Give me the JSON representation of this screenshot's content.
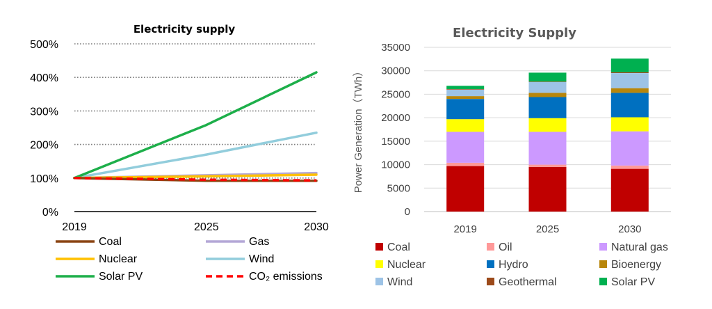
{
  "chart_data": [
    {
      "type": "line",
      "title": "Electricity supply",
      "x": [
        2019,
        2025,
        2030
      ],
      "ylim": [
        0,
        500
      ],
      "yticks": [
        "0%",
        "100%",
        "200%",
        "300%",
        "400%",
        "500%"
      ],
      "xticks": [
        "2019",
        "2025",
        "2030"
      ],
      "grid": "horizontal dotted",
      "legend_position": "bottom",
      "series": [
        {
          "name": "Coal",
          "color": "#8B4513",
          "dash": false,
          "values": [
            100,
            92,
            92
          ]
        },
        {
          "name": "Gas",
          "color": "#B4A7D6",
          "dash": false,
          "values": [
            100,
            108,
            115
          ]
        },
        {
          "name": "Nuclear",
          "color": "#FFC000",
          "dash": false,
          "values": [
            100,
            105,
            110
          ]
        },
        {
          "name": "Wind",
          "color": "#92CDDC",
          "dash": false,
          "values": [
            100,
            170,
            235
          ]
        },
        {
          "name": "Solar PV",
          "color": "#1DAF4A",
          "dash": false,
          "values": [
            100,
            258,
            415
          ]
        },
        {
          "name": "CO₂ emissions",
          "color": "#FF0000",
          "dash": true,
          "values": [
            100,
            95,
            93
          ]
        }
      ]
    },
    {
      "type": "bar",
      "stacked": true,
      "title": "Electricity Supply",
      "ylabel": "Power Generation（TWh）",
      "categories": [
        "2019",
        "2025",
        "2030"
      ],
      "ylim": [
        0,
        35000
      ],
      "yticks": [
        "0",
        "5000",
        "10000",
        "15000",
        "20000",
        "25000",
        "30000",
        "35000"
      ],
      "legend_position": "bottom",
      "series": [
        {
          "name": "Coal",
          "color": "#C00000",
          "values": [
            9700,
            9500,
            9100
          ]
        },
        {
          "name": "Oil",
          "color": "#FF9999",
          "values": [
            700,
            500,
            700
          ]
        },
        {
          "name": "Natural gas",
          "color": "#CC99FF",
          "values": [
            6600,
            7000,
            7300
          ]
        },
        {
          "name": "Nuclear",
          "color": "#FFFF00",
          "values": [
            2700,
            2900,
            3000
          ]
        },
        {
          "name": "Hydro",
          "color": "#0070C0",
          "values": [
            4300,
            4500,
            5200
          ]
        },
        {
          "name": "Bioenergy",
          "color": "#B8860B",
          "values": [
            600,
            900,
            1000
          ]
        },
        {
          "name": "Wind",
          "color": "#9DC3E6",
          "values": [
            1400,
            2300,
            3200
          ]
        },
        {
          "name": "Geothermal",
          "color": "#9C4A1A",
          "values": [
            100,
            100,
            200
          ]
        },
        {
          "name": "Solar PV",
          "color": "#00B050",
          "values": [
            700,
            1900,
            2900
          ]
        }
      ]
    }
  ]
}
